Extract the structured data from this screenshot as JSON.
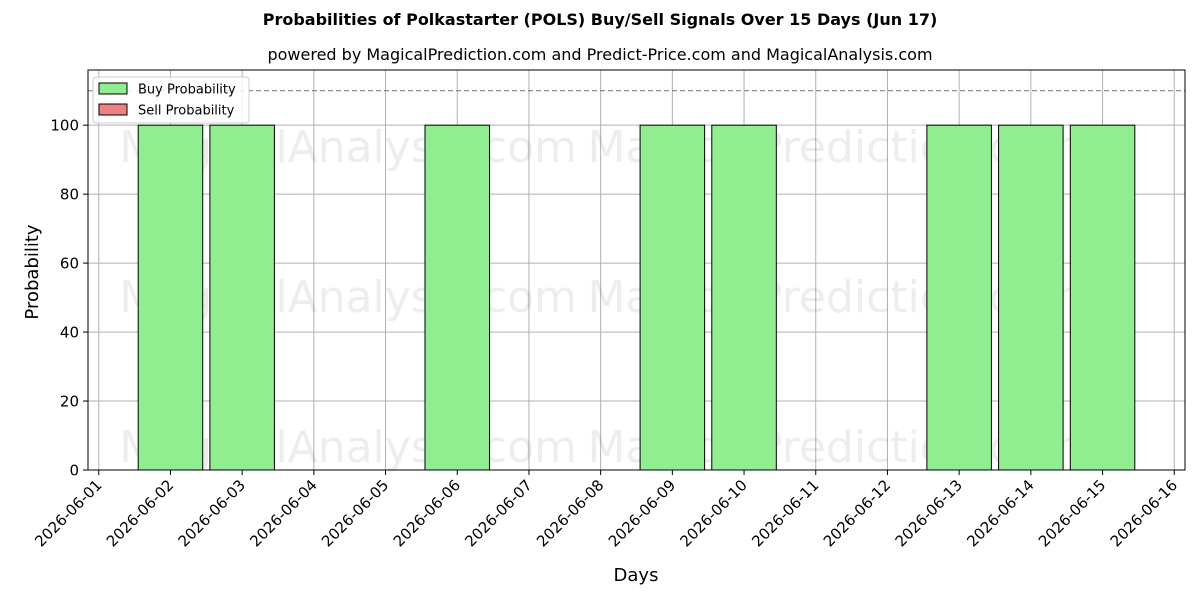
{
  "chart_data": {
    "type": "bar",
    "title": "Probabilities of Polkastarter (POLS) Buy/Sell Signals Over 15 Days (Jun 17)",
    "subtitle": "powered by MagicalPrediction.com and Predict-Price.com and MagicalAnalysis.com",
    "xlabel": "Days",
    "ylabel": "Probability",
    "xlim": [
      "2026-06-01",
      "2026-06-16"
    ],
    "ylim": [
      0,
      116
    ],
    "reference_line": 110,
    "grid": true,
    "legend_position": "top-left",
    "x_ticks": [
      "2026-06-01",
      "2026-06-02",
      "2026-06-03",
      "2026-06-04",
      "2026-06-05",
      "2026-06-06",
      "2026-06-07",
      "2026-06-08",
      "2026-06-09",
      "2026-06-10",
      "2026-06-11",
      "2026-06-12",
      "2026-06-13",
      "2026-06-14",
      "2026-06-15",
      "2026-06-16"
    ],
    "y_ticks": [
      0,
      20,
      40,
      60,
      80,
      100
    ],
    "categories": [
      "2026-06-02",
      "2026-06-03",
      "2026-06-04",
      "2026-06-05",
      "2026-06-06",
      "2026-06-07",
      "2026-06-08",
      "2026-06-09",
      "2026-06-10",
      "2026-06-11",
      "2026-06-12",
      "2026-06-13",
      "2026-06-14",
      "2026-06-15"
    ],
    "series": [
      {
        "name": "Buy Probability",
        "color": "#90ee90",
        "values": [
          100,
          100,
          0,
          0,
          100,
          0,
          0,
          100,
          100,
          0,
          0,
          100,
          100,
          100
        ]
      },
      {
        "name": "Sell Probability",
        "color": "#f08080",
        "values": [
          0,
          0,
          0,
          0,
          0,
          0,
          0,
          0,
          0,
          0,
          0,
          0,
          0,
          0
        ]
      }
    ],
    "watermarks": [
      "MagicalAnalysis.com",
      "MagicalPrediction.com"
    ]
  }
}
